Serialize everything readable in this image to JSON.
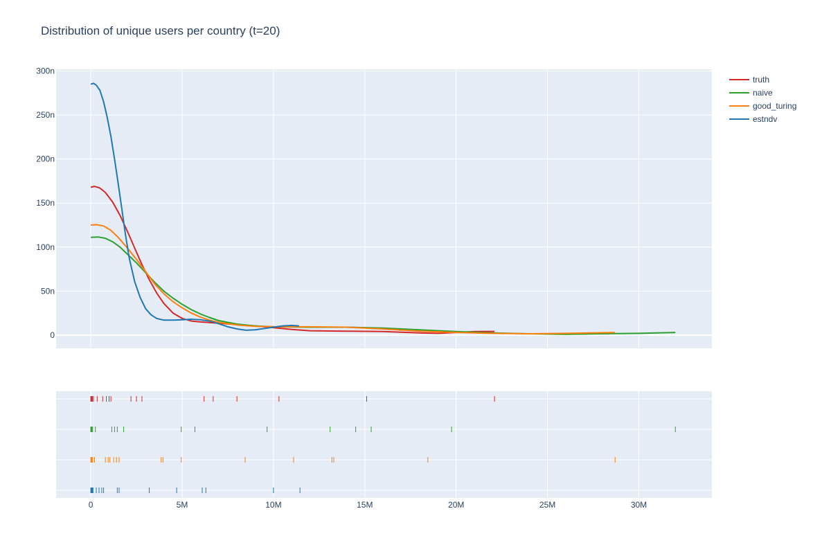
{
  "chart_data": {
    "type": "line",
    "title": "Distribution of unique users per country (t=20)",
    "xlabel": "",
    "ylabel": "",
    "xlim": [
      -1900000,
      34000000
    ],
    "ylim": [
      -1.5e-08,
      3.02e-07
    ],
    "x_ticks": [
      {
        "value": 0,
        "label": "0"
      },
      {
        "value": 5000000,
        "label": "5M"
      },
      {
        "value": 10000000,
        "label": "10M"
      },
      {
        "value": 15000000,
        "label": "15M"
      },
      {
        "value": 20000000,
        "label": "20M"
      },
      {
        "value": 25000000,
        "label": "25M"
      },
      {
        "value": 30000000,
        "label": "30M"
      }
    ],
    "y_ticks": [
      {
        "value": 0,
        "label": "0"
      },
      {
        "value": 5e-08,
        "label": "50n"
      },
      {
        "value": 1e-07,
        "label": "100n"
      },
      {
        "value": 1.5e-07,
        "label": "150n"
      },
      {
        "value": 2e-07,
        "label": "200n"
      },
      {
        "value": 2.5e-07,
        "label": "250n"
      },
      {
        "value": 3e-07,
        "label": "300n"
      }
    ],
    "grid": true,
    "legend_position": "right",
    "series": [
      {
        "name": "truth",
        "color": "#d62728",
        "points": [
          [
            0,
            168
          ],
          [
            200000,
            169
          ],
          [
            500000,
            167
          ],
          [
            800000,
            162
          ],
          [
            1200000,
            151
          ],
          [
            1600000,
            136
          ],
          [
            2000000,
            118
          ],
          [
            2400000,
            99
          ],
          [
            2800000,
            80
          ],
          [
            3200000,
            63
          ],
          [
            3600000,
            48
          ],
          [
            4000000,
            36
          ],
          [
            4500000,
            25
          ],
          [
            5000000,
            19
          ],
          [
            5500000,
            16
          ],
          [
            6000000,
            15
          ],
          [
            7000000,
            13.5
          ],
          [
            8000000,
            12
          ],
          [
            9000000,
            10.5
          ],
          [
            10000000,
            8.5
          ],
          [
            11000000,
            6.5
          ],
          [
            12000000,
            5
          ],
          [
            14000000,
            4.5
          ],
          [
            16000000,
            4
          ],
          [
            18000000,
            2.5
          ],
          [
            19000000,
            2
          ],
          [
            20000000,
            3
          ],
          [
            21000000,
            4
          ],
          [
            22100000,
            4.2
          ]
        ]
      },
      {
        "name": "naive",
        "color": "#2ca02c",
        "points": [
          [
            0,
            111
          ],
          [
            400000,
            111.5
          ],
          [
            800000,
            110
          ],
          [
            1200000,
            106
          ],
          [
            1600000,
            100
          ],
          [
            2000000,
            92
          ],
          [
            2500000,
            82
          ],
          [
            3000000,
            71
          ],
          [
            3500000,
            60
          ],
          [
            4000000,
            50
          ],
          [
            4500000,
            42
          ],
          [
            5000000,
            35
          ],
          [
            5500000,
            29
          ],
          [
            6000000,
            24
          ],
          [
            6500000,
            20
          ],
          [
            7000000,
            16.5
          ],
          [
            8000000,
            12.5
          ],
          [
            9000000,
            10.5
          ],
          [
            10000000,
            9.5
          ],
          [
            12000000,
            9
          ],
          [
            14000000,
            9
          ],
          [
            16000000,
            8
          ],
          [
            18000000,
            6
          ],
          [
            20000000,
            4
          ],
          [
            22000000,
            2.5
          ],
          [
            24000000,
            1.5
          ],
          [
            26000000,
            1
          ],
          [
            28000000,
            1.5
          ],
          [
            30000000,
            2
          ],
          [
            32000000,
            3
          ]
        ]
      },
      {
        "name": "good_turing",
        "color": "#ff7f0e",
        "points": [
          [
            0,
            125
          ],
          [
            300000,
            125.5
          ],
          [
            700000,
            124
          ],
          [
            1100000,
            119
          ],
          [
            1500000,
            111
          ],
          [
            2000000,
            99
          ],
          [
            2500000,
            86
          ],
          [
            3000000,
            72
          ],
          [
            3500000,
            58
          ],
          [
            4000000,
            47
          ],
          [
            4500000,
            38
          ],
          [
            5000000,
            31
          ],
          [
            5500000,
            25
          ],
          [
            6000000,
            20.5
          ],
          [
            6500000,
            17
          ],
          [
            7000000,
            14.5
          ],
          [
            8000000,
            11.5
          ],
          [
            9000000,
            10
          ],
          [
            10000000,
            9.5
          ],
          [
            12000000,
            9.5
          ],
          [
            14000000,
            9
          ],
          [
            16000000,
            7
          ],
          [
            18000000,
            4.5
          ],
          [
            20000000,
            3
          ],
          [
            22000000,
            2
          ],
          [
            24000000,
            1.5
          ],
          [
            26000000,
            2
          ],
          [
            28700000,
            3
          ]
        ]
      },
      {
        "name": "estndv",
        "color": "#1f77b4",
        "points": [
          [
            0,
            285
          ],
          [
            150000,
            286
          ],
          [
            300000,
            284
          ],
          [
            500000,
            278
          ],
          [
            700000,
            265
          ],
          [
            900000,
            247
          ],
          [
            1100000,
            226
          ],
          [
            1300000,
            200
          ],
          [
            1500000,
            172
          ],
          [
            1700000,
            143
          ],
          [
            1900000,
            114
          ],
          [
            2100000,
            88
          ],
          [
            2400000,
            61
          ],
          [
            2700000,
            43
          ],
          [
            3000000,
            30
          ],
          [
            3300000,
            23
          ],
          [
            3600000,
            19
          ],
          [
            4000000,
            17
          ],
          [
            4500000,
            17
          ],
          [
            5000000,
            17.5
          ],
          [
            5500000,
            18
          ],
          [
            6000000,
            17.5
          ],
          [
            6500000,
            16
          ],
          [
            7000000,
            13
          ],
          [
            7500000,
            9.5
          ],
          [
            8000000,
            7
          ],
          [
            8500000,
            5.5
          ],
          [
            9000000,
            6
          ],
          [
            9500000,
            7.5
          ],
          [
            10000000,
            9
          ],
          [
            10500000,
            10.5
          ],
          [
            11000000,
            11
          ],
          [
            11400000,
            10.5
          ]
        ]
      }
    ],
    "rug": [
      {
        "name": "truth",
        "color": "#d62728",
        "values": [
          0,
          30000,
          60000,
          90000,
          150000,
          350000,
          650000,
          850000,
          1000000,
          1100000,
          2200000,
          2500000,
          2800000,
          6200000,
          6700000,
          8000000,
          10300000,
          15100000,
          22100000
        ]
      },
      {
        "name": "naive",
        "color": "#2ca02c",
        "values": [
          0,
          30000,
          60000,
          100000,
          250000,
          1150000,
          1300000,
          1450000,
          1800000,
          4950000,
          5700000,
          9650000,
          13100000,
          14500000,
          15350000,
          19750000,
          32000000
        ]
      },
      {
        "name": "good_turing",
        "color": "#ff7f0e",
        "values": [
          0,
          30000,
          60000,
          100000,
          200000,
          800000,
          950000,
          1050000,
          1250000,
          1400000,
          1550000,
          3850000,
          3950000,
          4950000,
          8450000,
          11100000,
          13200000,
          13300000,
          18450000,
          28700000
        ]
      },
      {
        "name": "estndv",
        "color": "#1f77b4",
        "values": [
          0,
          30000,
          60000,
          90000,
          120000,
          300000,
          450000,
          600000,
          700000,
          1450000,
          1550000,
          3200000,
          4700000,
          6100000,
          6300000,
          10000000,
          11450000
        ]
      }
    ]
  }
}
